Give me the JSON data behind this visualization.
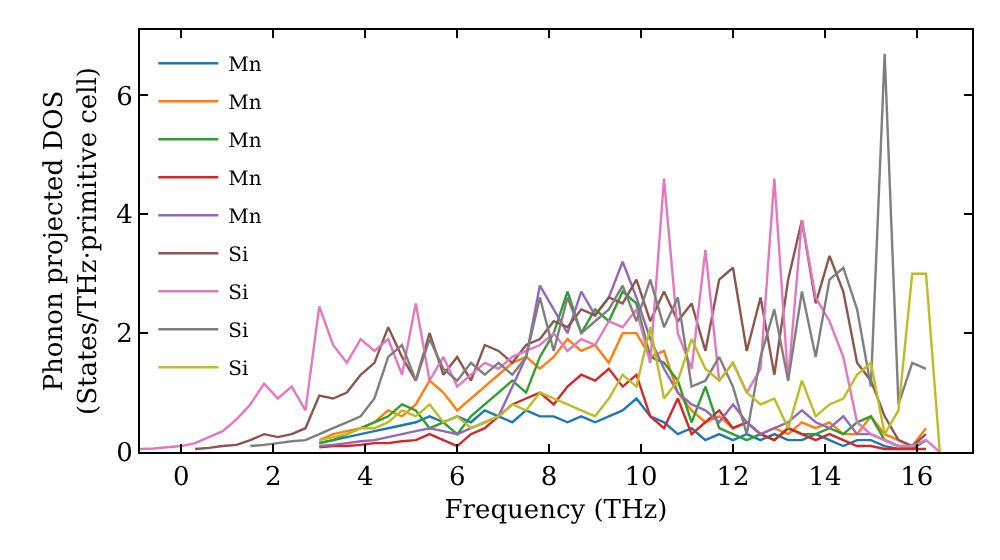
{
  "chart_data": {
    "type": "line",
    "xlabel": "Frequency (THz)",
    "ylabel": "Phonon projected DOS\n(States/THz·primitive cell)",
    "xlim": [
      -0.9,
      17.2
    ],
    "ylim": [
      0,
      7.1
    ],
    "xticks": [
      0,
      2,
      4,
      6,
      8,
      10,
      12,
      14,
      16
    ],
    "yticks": [
      0,
      2,
      4,
      6
    ],
    "legend": "top left",
    "marker": "none",
    "line_style": "solid",
    "x": [
      -0.9,
      -0.6,
      -0.3,
      0,
      0.3,
      0.6,
      0.9,
      1.2,
      1.5,
      1.8,
      2.1,
      2.4,
      2.7,
      3.0,
      3.3,
      3.6,
      3.9,
      4.2,
      4.5,
      4.8,
      5.1,
      5.4,
      5.7,
      6.0,
      6.3,
      6.6,
      6.9,
      7.2,
      7.5,
      7.8,
      8.1,
      8.4,
      8.7,
      9.0,
      9.3,
      9.6,
      9.9,
      10.2,
      10.5,
      10.8,
      11.1,
      11.4,
      11.7,
      12.0,
      12.3,
      12.6,
      12.9,
      13.2,
      13.5,
      13.8,
      14.1,
      14.4,
      14.7,
      15.0,
      15.3,
      15.6,
      15.9,
      16.2,
      16.5
    ],
    "series": [
      {
        "name": "Mn",
        "color": "#1f77b4",
        "values": [
          null,
          null,
          null,
          null,
          null,
          null,
          null,
          null,
          null,
          null,
          null,
          null,
          null,
          0.15,
          0.2,
          0.25,
          0.3,
          0.35,
          0.4,
          0.45,
          0.5,
          0.6,
          0.5,
          0.6,
          0.5,
          0.7,
          0.6,
          0.5,
          0.7,
          0.6,
          0.6,
          0.5,
          0.6,
          0.5,
          0.6,
          0.7,
          0.9,
          0.6,
          0.5,
          0.3,
          0.4,
          0.2,
          0.3,
          0.2,
          0.3,
          0.2,
          0.3,
          0.2,
          0.2,
          0.3,
          0.2,
          0.1,
          0.2,
          0.2,
          0.1,
          0.05,
          0.1,
          null,
          null
        ]
      },
      {
        "name": "Mn",
        "color": "#ff7f0e",
        "values": [
          null,
          null,
          null,
          null,
          null,
          null,
          null,
          null,
          null,
          null,
          null,
          null,
          null,
          0.2,
          0.3,
          0.35,
          0.4,
          0.5,
          0.7,
          0.6,
          0.8,
          1.2,
          1.0,
          0.7,
          0.9,
          1.1,
          1.3,
          1.5,
          1.6,
          1.4,
          1.6,
          1.9,
          1.7,
          1.8,
          1.5,
          2.0,
          2.0,
          1.6,
          1.7,
          1.0,
          0.7,
          0.5,
          0.6,
          0.4,
          0.5,
          0.3,
          0.4,
          0.3,
          0.5,
          0.4,
          0.5,
          0.3,
          0.3,
          0.6,
          0.3,
          0.2,
          0.1,
          0.4,
          null
        ]
      },
      {
        "name": "Mn",
        "color": "#2ca02c",
        "values": [
          null,
          null,
          null,
          null,
          null,
          null,
          null,
          null,
          null,
          null,
          null,
          null,
          null,
          0.15,
          0.2,
          0.3,
          0.4,
          0.5,
          0.6,
          0.8,
          0.7,
          0.4,
          0.5,
          0.3,
          0.6,
          0.8,
          1.0,
          1.2,
          1.0,
          1.6,
          2.0,
          2.7,
          2.0,
          2.4,
          2.2,
          2.7,
          2.5,
          1.6,
          1.5,
          1.2,
          0.5,
          1.1,
          0.4,
          0.3,
          0.2,
          0.3,
          0.2,
          0.4,
          0.3,
          0.3,
          0.4,
          0.3,
          0.5,
          0.6,
          0.2,
          0.1,
          0.05,
          0.2,
          null
        ]
      },
      {
        "name": "Mn",
        "color": "#d62728",
        "values": [
          null,
          null,
          null,
          null,
          null,
          null,
          null,
          null,
          null,
          null,
          null,
          null,
          null,
          0.08,
          0.1,
          0.1,
          0.12,
          0.15,
          0.15,
          0.18,
          0.2,
          0.3,
          0.2,
          0.1,
          0.3,
          0.4,
          0.6,
          0.8,
          0.9,
          1.0,
          0.8,
          1.1,
          1.3,
          1.2,
          1.4,
          1.1,
          1.3,
          0.6,
          0.4,
          0.9,
          0.3,
          0.5,
          0.7,
          0.4,
          0.5,
          0.3,
          0.2,
          0.4,
          0.3,
          0.2,
          0.3,
          0.2,
          0.1,
          0.1,
          0.05,
          0.05,
          0.05,
          0.05,
          null
        ]
      },
      {
        "name": "Mn",
        "color": "#9467bd",
        "values": [
          null,
          null,
          null,
          null,
          null,
          null,
          null,
          null,
          null,
          null,
          null,
          null,
          null,
          0.1,
          0.12,
          0.15,
          0.18,
          0.2,
          0.25,
          0.3,
          0.35,
          0.4,
          0.35,
          0.3,
          0.4,
          0.5,
          0.6,
          1.1,
          1.6,
          2.8,
          2.4,
          2.0,
          2.7,
          2.3,
          2.6,
          3.2,
          2.6,
          1.9,
          1.4,
          1.0,
          0.8,
          0.7,
          0.5,
          0.8,
          0.5,
          0.3,
          0.4,
          0.5,
          0.7,
          0.5,
          0.4,
          0.6,
          0.3,
          0.3,
          0.2,
          0.1,
          0.1,
          0.2,
          null
        ]
      },
      {
        "name": "Si",
        "color": "#8c564b",
        "values": [
          null,
          null,
          null,
          null,
          0.05,
          0.07,
          0.1,
          0.12,
          0.2,
          0.3,
          0.25,
          0.3,
          0.4,
          0.95,
          0.9,
          1.0,
          1.3,
          1.5,
          2.1,
          1.6,
          1.2,
          2.0,
          1.3,
          1.6,
          1.2,
          1.8,
          1.7,
          1.5,
          1.8,
          1.9,
          2.2,
          2.1,
          2.4,
          2.3,
          2.6,
          2.5,
          2.9,
          2.2,
          2.7,
          2.2,
          2.5,
          1.7,
          2.9,
          3.1,
          1.7,
          2.6,
          1.3,
          2.9,
          3.9,
          2.5,
          3.3,
          2.7,
          1.5,
          1.2,
          0.6,
          0.2,
          0.1,
          0.3,
          null
        ]
      },
      {
        "name": "Si",
        "color": "#e377c2",
        "values": [
          0.05,
          0.06,
          0.08,
          0.1,
          0.15,
          0.25,
          0.35,
          0.55,
          0.8,
          1.15,
          0.9,
          1.1,
          0.7,
          2.45,
          1.8,
          1.5,
          1.9,
          1.7,
          1.9,
          1.3,
          2.5,
          1.2,
          1.6,
          1.1,
          1.3,
          1.5,
          1.4,
          1.6,
          1.7,
          1.8,
          2.0,
          1.7,
          1.9,
          1.8,
          2.2,
          2.1,
          2.4,
          1.5,
          4.6,
          2.0,
          1.4,
          3.4,
          1.2,
          1.5,
          1.0,
          1.4,
          4.6,
          1.2,
          3.9,
          2.6,
          2.2,
          1.6,
          0.5,
          0.3,
          0.2,
          0.1,
          0.1,
          0.2,
          0
        ]
      },
      {
        "name": "Si",
        "color": "#7f7f7f",
        "values": [
          null,
          null,
          null,
          null,
          null,
          null,
          null,
          null,
          0.1,
          0.12,
          0.15,
          0.18,
          0.2,
          0.3,
          0.4,
          0.5,
          0.6,
          0.9,
          1.6,
          1.8,
          1.2,
          1.9,
          1.4,
          1.2,
          1.5,
          1.3,
          1.5,
          1.3,
          1.6,
          2.6,
          1.7,
          2.6,
          2.0,
          2.2,
          2.4,
          2.8,
          2.2,
          2.9,
          2.1,
          2.6,
          1.1,
          1.2,
          1.6,
          1.1,
          0.3,
          1.6,
          2.4,
          1.2,
          2.7,
          1.6,
          2.9,
          3.1,
          2.4,
          1.1,
          6.7,
          0.8,
          1.5,
          1.4,
          null
        ]
      },
      {
        "name": "Si",
        "color": "#bcbd22",
        "values": [
          null,
          null,
          null,
          null,
          null,
          null,
          null,
          null,
          null,
          null,
          null,
          null,
          null,
          0.2,
          0.25,
          0.3,
          0.4,
          0.4,
          0.5,
          0.7,
          0.6,
          0.8,
          0.5,
          0.6,
          0.4,
          0.5,
          0.6,
          0.8,
          0.7,
          1.0,
          0.9,
          0.8,
          0.7,
          0.6,
          0.9,
          1.3,
          1.1,
          2.1,
          0.9,
          1.2,
          1.9,
          1.4,
          1.2,
          1.5,
          1.0,
          0.8,
          0.9,
          0.4,
          1.2,
          0.6,
          0.8,
          0.9,
          1.3,
          1.5,
          0.3,
          0.7,
          3.0,
          3.0,
          0
        ]
      }
    ]
  }
}
